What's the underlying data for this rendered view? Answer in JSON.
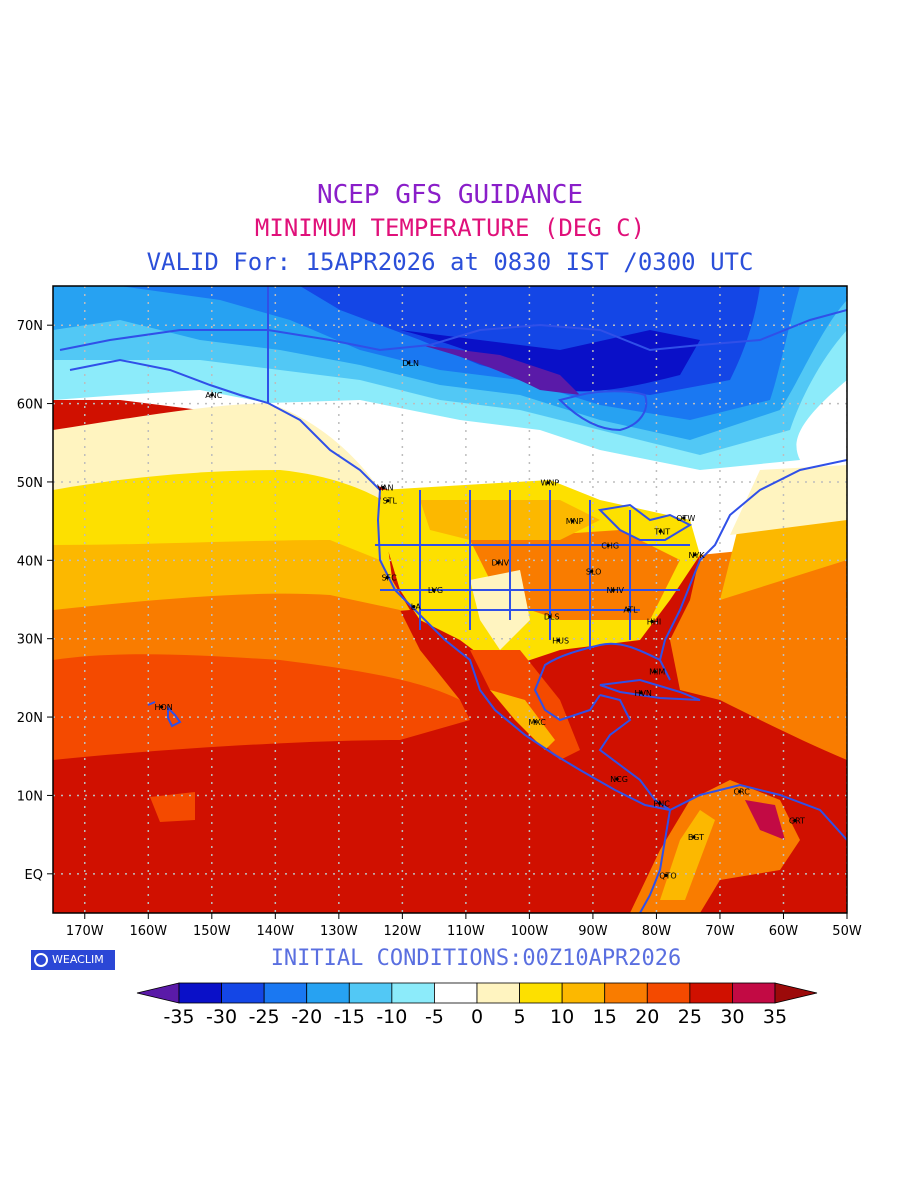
{
  "title": {
    "line1": "NCEP GFS GUIDANCE",
    "line2": "MINIMUM TEMPERATURE (DEG C)",
    "line3": "VALID For: 15APR2026 at 0830 IST /0300 UTC"
  },
  "colors": {
    "line1": "#8a1ec9",
    "line2": "#e0107a",
    "line3": "#2b4fd9",
    "initial": "#5a6fe0",
    "coast": "#3050e8",
    "grid": "#bdbdbd"
  },
  "map": {
    "lat_ticks": [
      "70N",
      "60N",
      "50N",
      "40N",
      "30N",
      "20N",
      "10N",
      "EQ"
    ],
    "lat_values": [
      70,
      60,
      50,
      40,
      30,
      20,
      10,
      0
    ],
    "lon_ticks": [
      "170W",
      "160W",
      "150W",
      "140W",
      "130W",
      "120W",
      "110W",
      "100W",
      "90W",
      "80W",
      "70W",
      "60W",
      "50W"
    ],
    "lon_values": [
      -170,
      -160,
      -150,
      -140,
      -130,
      -120,
      -110,
      -100,
      -90,
      -80,
      -70,
      -60,
      -50
    ],
    "lon_range": [
      -175,
      -50
    ],
    "lat_range": [
      -5,
      75
    ],
    "cities": [
      {
        "name": "DLN",
        "lon": -119,
        "lat": 65.2
      },
      {
        "name": "ANC",
        "lon": -150,
        "lat": 61.1
      },
      {
        "name": "VAN",
        "lon": -123,
        "lat": 49.3
      },
      {
        "name": "STL",
        "lon": -122.3,
        "lat": 47.6
      },
      {
        "name": "WNP",
        "lon": -97.1,
        "lat": 49.9
      },
      {
        "name": "MNP",
        "lon": -93.2,
        "lat": 45
      },
      {
        "name": "OTW",
        "lon": -75.7,
        "lat": 45.4
      },
      {
        "name": "TNT",
        "lon": -79.4,
        "lat": 43.7
      },
      {
        "name": "CHG",
        "lon": -87.6,
        "lat": 41.9
      },
      {
        "name": "NYK",
        "lon": -74,
        "lat": 40.7
      },
      {
        "name": "DNV",
        "lon": -104.9,
        "lat": 39.7
      },
      {
        "name": "SFC",
        "lon": -122.4,
        "lat": 37.8
      },
      {
        "name": "SLO",
        "lon": -90.2,
        "lat": 38.6
      },
      {
        "name": "LVG",
        "lon": -115.1,
        "lat": 36.2
      },
      {
        "name": "NHV",
        "lon": -86.8,
        "lat": 36.2
      },
      {
        "name": "LA",
        "lon": -118.2,
        "lat": 34.1
      },
      {
        "name": "ATL",
        "lon": -84.4,
        "lat": 33.7
      },
      {
        "name": "DLS",
        "lon": -96.8,
        "lat": 32.8
      },
      {
        "name": "HHI",
        "lon": -80.7,
        "lat": 32.2
      },
      {
        "name": "HUS",
        "lon": -95.4,
        "lat": 29.8
      },
      {
        "name": "MIM",
        "lon": -80.2,
        "lat": 25.8
      },
      {
        "name": "HVN",
        "lon": -82.4,
        "lat": 23.1
      },
      {
        "name": "HON",
        "lon": -157.9,
        "lat": 21.3
      },
      {
        "name": "MXC",
        "lon": -99.1,
        "lat": 19.4
      },
      {
        "name": "NCG",
        "lon": -86.2,
        "lat": 12.1
      },
      {
        "name": "CRC",
        "lon": -66.9,
        "lat": 10.5
      },
      {
        "name": "PNC",
        "lon": -79.5,
        "lat": 9
      },
      {
        "name": "GRT",
        "lon": -58.2,
        "lat": 6.8
      },
      {
        "name": "BGT",
        "lon": -74.1,
        "lat": 4.7
      },
      {
        "name": "QTO",
        "lon": -78.5,
        "lat": -0.2
      }
    ]
  },
  "colorbar": {
    "labels": [
      "-35",
      "-30",
      "-25",
      "-20",
      "-15",
      "-10",
      "-5",
      "0",
      "5",
      "10",
      "15",
      "20",
      "25",
      "30",
      "35"
    ],
    "colors": [
      "#5a1aa8",
      "#0a10c8",
      "#1446e6",
      "#1a78f2",
      "#27a2f2",
      "#52c8f5",
      "#8cebfa",
      "#ffffff",
      "#fff4c0",
      "#fde000",
      "#fcb800",
      "#f97c00",
      "#f44a00",
      "#d01000",
      "#c20a44",
      "#9c0a0a"
    ]
  },
  "initial_conditions": "INITIAL CONDITIONS:00Z10APR2026",
  "logo": {
    "text": "WEACLIM",
    "icon": "globe-icon"
  }
}
